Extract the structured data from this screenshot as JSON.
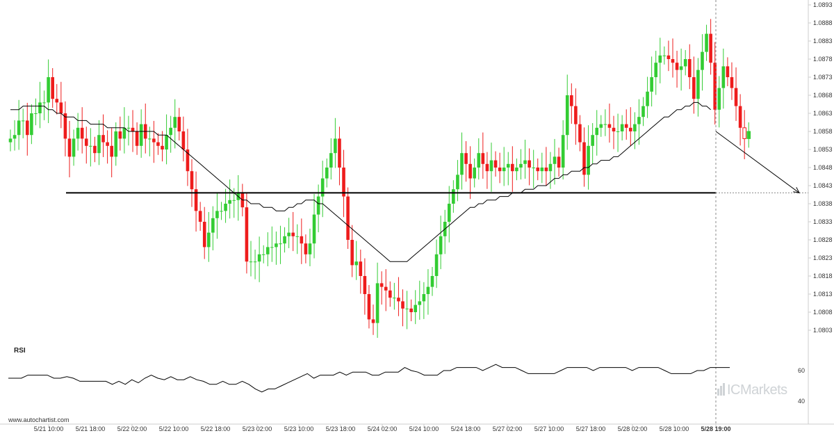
{
  "chart_data": {
    "type": "candlestick",
    "price_axis": {
      "range": [
        1.0798,
        1.0893
      ],
      "ticks": [
        "1.0893",
        "1.0888",
        "1.0883",
        "1.0878",
        "1.0873",
        "1.0868",
        "1.0863",
        "1.0858",
        "1.0853",
        "1.0848",
        "1.0843",
        "1.0838",
        "1.0833",
        "1.0828",
        "1.0823",
        "1.0818",
        "1.0813",
        "1.0808",
        "1.0803"
      ]
    },
    "time_axis": {
      "ticks": [
        "5/21 10:00",
        "5/21 18:00",
        "5/22 02:00",
        "5/22 10:00",
        "5/22 18:00",
        "5/23 02:00",
        "5/23 10:00",
        "5/23 18:00",
        "5/24 02:00",
        "5/24 10:00",
        "5/24 18:00",
        "5/27 02:00",
        "5/27 10:00",
        "5/27 18:00",
        "5/28 02:00",
        "5/28 10:00",
        "5/28 19:00"
      ],
      "highlight": "5/28 19:00"
    },
    "support_level": 1.0841,
    "projection": {
      "from": 1.0858,
      "to": 1.0841
    },
    "colors": {
      "up": "#33cc33",
      "down": "#ee1c1c",
      "line": "#000000",
      "axis": "#cccccc",
      "dashed": "#888888"
    },
    "close": [
      1.0856,
      1.0857,
      1.0861,
      1.0861,
      1.0857,
      1.0863,
      1.0863,
      1.0866,
      1.0866,
      1.0873,
      1.0867,
      1.0866,
      1.0863,
      1.0856,
      1.0851,
      1.0856,
      1.0859,
      1.0856,
      1.0854,
      1.0854,
      1.0852,
      1.0857,
      1.0855,
      1.0854,
      1.0851,
      1.0858,
      1.0856,
      1.0859,
      1.0859,
      1.0858,
      1.0854,
      1.086,
      1.0856,
      1.0856,
      1.0855,
      1.0854,
      1.0853,
      1.0857,
      1.0859,
      1.0862,
      1.0858,
      1.0853,
      1.0847,
      1.0842,
      1.0836,
      1.0833,
      1.0826,
      1.083,
      1.0834,
      1.0836,
      1.0836,
      1.0838,
      1.0839,
      1.0839,
      1.0841,
      1.0837,
      1.0822,
      1.0822,
      1.0822,
      1.0824,
      1.0824,
      1.0826,
      1.0826,
      1.0827,
      1.0827,
      1.0829,
      1.083,
      1.0829,
      1.0829,
      1.0827,
      1.0824,
      1.0827,
      1.0835,
      1.084,
      1.0845,
      1.0848,
      1.0852,
      1.0856,
      1.0848,
      1.084,
      1.0828,
      1.0821,
      1.0822,
      1.0818,
      1.0813,
      1.0806,
      1.0805,
      1.0816,
      1.0815,
      1.0814,
      1.0812,
      1.0812,
      1.0811,
      1.0809,
      1.0809,
      1.0808,
      1.081,
      1.0811,
      1.0813,
      1.0815,
      1.0818,
      1.0824,
      1.0829,
      1.0833,
      1.0838,
      1.0842,
      1.0846,
      1.0852,
      1.0849,
      1.0845,
      1.0848,
      1.0852,
      1.0849,
      1.0847,
      1.085,
      1.0848,
      1.0847,
      1.0848,
      1.0849,
      1.0847,
      1.0848,
      1.0849,
      1.085,
      1.0848,
      1.0848,
      1.0847,
      1.0848,
      1.0847,
      1.0849,
      1.0851,
      1.0848,
      1.0857,
      1.0868,
      1.0865,
      1.086,
      1.0855,
      1.0846,
      1.0854,
      1.0857,
      1.0859,
      1.086,
      1.086,
      1.0859,
      1.0858,
      1.0858,
      1.086,
      1.0859,
      1.0858,
      1.086,
      1.0862,
      1.0865,
      1.0869,
      1.0873,
      1.0877,
      1.0879,
      1.0879,
      1.0878,
      1.0877,
      1.0875,
      1.0876,
      1.0878,
      1.0873,
      1.0867,
      1.0875,
      1.088,
      1.0885,
      1.0877,
      1.0864,
      1.087,
      1.0876,
      1.0873,
      1.087,
      1.0865,
      1.0859,
      1.0856,
      1.0858
    ],
    "sma": [
      1.0864,
      1.0864,
      1.0864,
      1.0865,
      1.0865,
      1.0865,
      1.0865,
      1.0865,
      1.0865,
      1.0864,
      1.0864,
      1.0863,
      1.0863,
      1.0862,
      1.0862,
      1.0862,
      1.0861,
      1.0861,
      1.0861,
      1.086,
      1.086,
      1.086,
      1.086,
      1.0859,
      1.0859,
      1.0859,
      1.0859,
      1.0859,
      1.0858,
      1.0858,
      1.0858,
      1.0858,
      1.0858,
      1.0858,
      1.0858,
      1.0857,
      1.0857,
      1.0857,
      1.0856,
      1.0855,
      1.0854,
      1.0853,
      1.0852,
      1.0851,
      1.085,
      1.0849,
      1.0848,
      1.0847,
      1.0846,
      1.0845,
      1.0844,
      1.0843,
      1.0842,
      1.0841,
      1.084,
      1.0839,
      1.0839,
      1.0838,
      1.0838,
      1.0838,
      1.0837,
      1.0837,
      1.0837,
      1.0836,
      1.0836,
      1.0836,
      1.0837,
      1.0837,
      1.0838,
      1.0838,
      1.0839,
      1.0839,
      1.0839,
      1.0838,
      1.0838,
      1.0837,
      1.0836,
      1.0835,
      1.0834,
      1.0833,
      1.0832,
      1.0831,
      1.083,
      1.0829,
      1.0828,
      1.0827,
      1.0826,
      1.0825,
      1.0824,
      1.0823,
      1.0822,
      1.0822,
      1.0822,
      1.0822,
      1.0822,
      1.0823,
      1.0824,
      1.0825,
      1.0826,
      1.0827,
      1.0828,
      1.0829,
      1.083,
      1.0831,
      1.0832,
      1.0833,
      1.0834,
      1.0835,
      1.0836,
      1.0837,
      1.0837,
      1.0838,
      1.0838,
      1.0839,
      1.0839,
      1.0839,
      1.084,
      1.084,
      1.084,
      1.0841,
      1.0841,
      1.0841,
      1.0842,
      1.0842,
      1.0842,
      1.0843,
      1.0843,
      1.0843,
      1.0844,
      1.0845,
      1.0845,
      1.0846,
      1.0846,
      1.0847,
      1.0847,
      1.0847,
      1.0848,
      1.0848,
      1.0849,
      1.0849,
      1.085,
      1.085,
      1.085,
      1.0851,
      1.0851,
      1.0852,
      1.0853,
      1.0854,
      1.0855,
      1.0856,
      1.0857,
      1.0858,
      1.0859,
      1.086,
      1.0861,
      1.0862,
      1.0862,
      1.0863,
      1.0864,
      1.0864,
      1.0865,
      1.0865,
      1.0866,
      1.0866,
      1.0865,
      1.0865,
      1.0864
    ],
    "rsi": {
      "ticks": [
        "60",
        "40"
      ],
      "range": [
        35,
        70
      ],
      "values": [
        55,
        55,
        55,
        57,
        57,
        57,
        57,
        55,
        55,
        56,
        55,
        53,
        53,
        53,
        53,
        53,
        51,
        53,
        51,
        54,
        52,
        55,
        57,
        55,
        54,
        56,
        54,
        54,
        56,
        54,
        53,
        51,
        51,
        53,
        51,
        51,
        53,
        51,
        48,
        46,
        48,
        48,
        50,
        52,
        54,
        56,
        58,
        55,
        57,
        57,
        57,
        59,
        57,
        59,
        59,
        59,
        57,
        57,
        59,
        59,
        59,
        62,
        60,
        59,
        57,
        57,
        57,
        60,
        60,
        62,
        62,
        62,
        62,
        60,
        62,
        64,
        62,
        62,
        62,
        60,
        58,
        58,
        58,
        58,
        58,
        60,
        62,
        62,
        62,
        62,
        60,
        62,
        62,
        62,
        62,
        62,
        60,
        62,
        62,
        62,
        62,
        60,
        58,
        58,
        58,
        58,
        60,
        60,
        62,
        62,
        62,
        62
      ]
    }
  },
  "rsi_label": "RSI",
  "credit": "www.autochartist.com",
  "watermark": "ICMarkets"
}
